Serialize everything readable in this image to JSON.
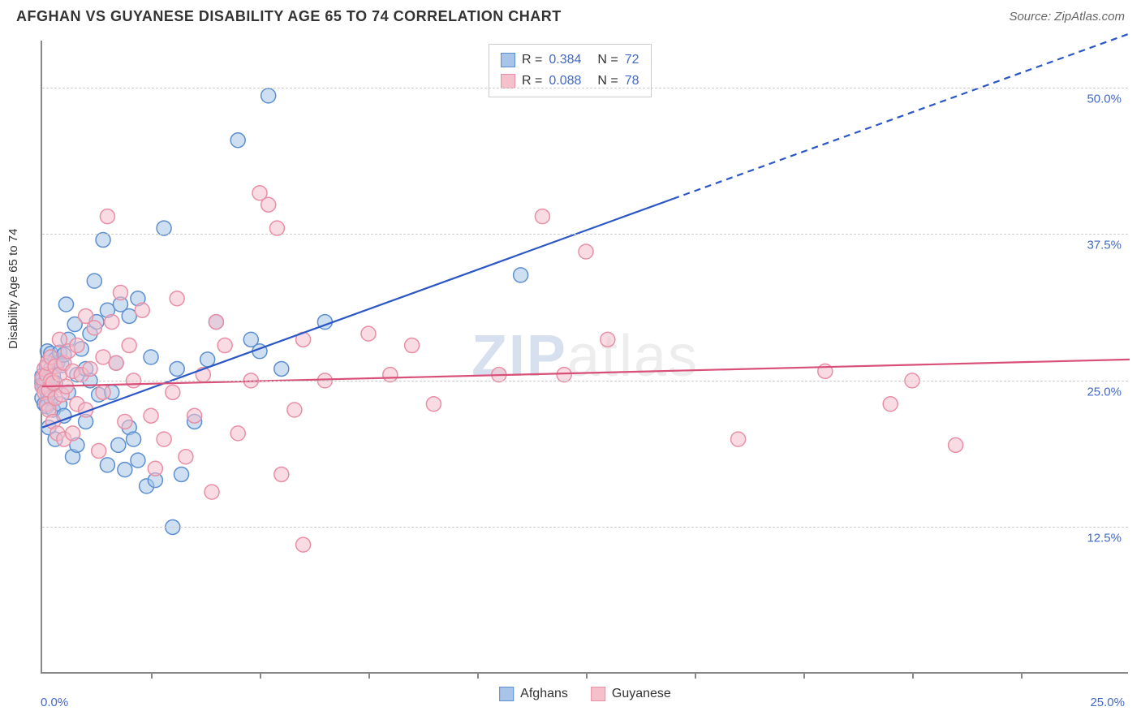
{
  "title": "AFGHAN VS GUYANESE DISABILITY AGE 65 TO 74 CORRELATION CHART",
  "source": "Source: ZipAtlas.com",
  "ylabel": "Disability Age 65 to 74",
  "watermark_bold": "ZIP",
  "watermark_rest": "atlas",
  "chart": {
    "type": "scatter",
    "xlim": [
      0,
      25
    ],
    "ylim": [
      0,
      54
    ],
    "x_axis_left_label": "0.0%",
    "x_axis_right_label": "25.0%",
    "y_ticks": [
      12.5,
      25.0,
      37.5,
      50.0
    ],
    "y_tick_labels": [
      "12.5%",
      "25.0%",
      "37.5%",
      "50.0%"
    ],
    "x_ticks": [
      2.5,
      5.0,
      7.5,
      10.0,
      12.5,
      15.0,
      17.5,
      20.0,
      22.5
    ],
    "background_color": "#ffffff",
    "grid_color": "#cccccc",
    "marker_radius": 9,
    "marker_opacity": 0.55,
    "series": [
      {
        "name": "Afghans",
        "color_fill": "#a8c4e8",
        "color_stroke": "#5b8fd0",
        "R": "0.384",
        "N": "72",
        "trend": {
          "x1": 0,
          "y1": 21.0,
          "x2": 14.5,
          "y2": 40.5,
          "x2_dash": 25,
          "y2_dash": 54.6,
          "color": "#2b56c6",
          "width": 2.2
        },
        "points": [
          [
            0.0,
            23.5
          ],
          [
            0.0,
            25.0
          ],
          [
            0.0,
            24.7
          ],
          [
            0.0,
            25.4
          ],
          [
            0.05,
            23.0
          ],
          [
            0.05,
            24.7
          ],
          [
            0.1,
            25.0
          ],
          [
            0.1,
            26.2
          ],
          [
            0.1,
            22.8
          ],
          [
            0.12,
            27.5
          ],
          [
            0.12,
            24.0
          ],
          [
            0.15,
            24.5
          ],
          [
            0.15,
            21.0
          ],
          [
            0.2,
            26.0
          ],
          [
            0.2,
            23.5
          ],
          [
            0.2,
            27.3
          ],
          [
            0.25,
            25.4
          ],
          [
            0.25,
            22.5
          ],
          [
            0.3,
            26.8
          ],
          [
            0.3,
            20.0
          ],
          [
            0.3,
            24.8
          ],
          [
            0.35,
            26.5
          ],
          [
            0.4,
            27.4
          ],
          [
            0.4,
            23.0
          ],
          [
            0.45,
            26.3
          ],
          [
            0.5,
            27.2
          ],
          [
            0.5,
            22.0
          ],
          [
            0.55,
            31.5
          ],
          [
            0.6,
            24.0
          ],
          [
            0.6,
            28.5
          ],
          [
            0.7,
            18.5
          ],
          [
            0.75,
            29.8
          ],
          [
            0.8,
            25.5
          ],
          [
            0.8,
            19.5
          ],
          [
            0.9,
            27.7
          ],
          [
            1.0,
            26.0
          ],
          [
            1.0,
            21.5
          ],
          [
            1.1,
            25.0
          ],
          [
            1.1,
            29.0
          ],
          [
            1.2,
            33.5
          ],
          [
            1.25,
            30.0
          ],
          [
            1.3,
            23.8
          ],
          [
            1.4,
            37.0
          ],
          [
            1.5,
            17.8
          ],
          [
            1.5,
            31.0
          ],
          [
            1.6,
            24.0
          ],
          [
            1.7,
            26.5
          ],
          [
            1.75,
            19.5
          ],
          [
            1.8,
            31.5
          ],
          [
            1.9,
            17.4
          ],
          [
            2.0,
            21.0
          ],
          [
            2.0,
            30.5
          ],
          [
            2.1,
            20.0
          ],
          [
            2.2,
            18.2
          ],
          [
            2.2,
            32.0
          ],
          [
            2.4,
            16.0
          ],
          [
            2.5,
            27.0
          ],
          [
            2.6,
            16.5
          ],
          [
            2.8,
            38.0
          ],
          [
            3.0,
            12.5
          ],
          [
            3.1,
            26.0
          ],
          [
            3.2,
            17.0
          ],
          [
            3.5,
            21.5
          ],
          [
            3.8,
            26.8
          ],
          [
            4.0,
            30.0
          ],
          [
            4.5,
            45.5
          ],
          [
            4.8,
            28.5
          ],
          [
            5.2,
            49.3
          ],
          [
            5.5,
            26.0
          ],
          [
            6.5,
            30.0
          ],
          [
            5.0,
            27.5
          ],
          [
            11.0,
            34.0
          ]
        ]
      },
      {
        "name": "Guyanese",
        "color_fill": "#f4c0cc",
        "color_stroke": "#e88fa5",
        "R": "0.088",
        "N": "78",
        "trend": {
          "x1": 0,
          "y1": 24.5,
          "x2": 25,
          "y2": 26.8,
          "color": "#d84f78",
          "width": 2.2
        },
        "points": [
          [
            0.0,
            24.5
          ],
          [
            0.0,
            25.2
          ],
          [
            0.05,
            24.0
          ],
          [
            0.05,
            26.0
          ],
          [
            0.1,
            23.0
          ],
          [
            0.1,
            25.5
          ],
          [
            0.12,
            26.5
          ],
          [
            0.15,
            24.2
          ],
          [
            0.15,
            22.5
          ],
          [
            0.2,
            25.0
          ],
          [
            0.2,
            27.0
          ],
          [
            0.25,
            24.8
          ],
          [
            0.25,
            21.5
          ],
          [
            0.3,
            23.5
          ],
          [
            0.3,
            26.2
          ],
          [
            0.35,
            20.5
          ],
          [
            0.4,
            25.5
          ],
          [
            0.4,
            28.5
          ],
          [
            0.45,
            23.8
          ],
          [
            0.5,
            26.5
          ],
          [
            0.5,
            20.0
          ],
          [
            0.55,
            24.5
          ],
          [
            0.6,
            27.5
          ],
          [
            0.7,
            20.5
          ],
          [
            0.7,
            25.8
          ],
          [
            0.8,
            23.0
          ],
          [
            0.8,
            28.0
          ],
          [
            0.9,
            25.5
          ],
          [
            1.0,
            30.5
          ],
          [
            1.0,
            22.5
          ],
          [
            1.1,
            26.0
          ],
          [
            1.2,
            29.5
          ],
          [
            1.3,
            19.0
          ],
          [
            1.4,
            24.0
          ],
          [
            1.4,
            27.0
          ],
          [
            1.5,
            39.0
          ],
          [
            1.6,
            30.0
          ],
          [
            1.7,
            26.5
          ],
          [
            1.8,
            32.5
          ],
          [
            1.9,
            21.5
          ],
          [
            2.0,
            28.0
          ],
          [
            2.1,
            25.0
          ],
          [
            2.3,
            31.0
          ],
          [
            2.5,
            22.0
          ],
          [
            2.6,
            17.5
          ],
          [
            2.8,
            20.0
          ],
          [
            3.0,
            24.0
          ],
          [
            3.1,
            32.0
          ],
          [
            3.3,
            18.5
          ],
          [
            3.5,
            22.0
          ],
          [
            3.7,
            25.5
          ],
          [
            3.9,
            15.5
          ],
          [
            4.0,
            30.0
          ],
          [
            4.2,
            28.0
          ],
          [
            4.5,
            20.5
          ],
          [
            4.8,
            25.0
          ],
          [
            5.0,
            41.0
          ],
          [
            5.2,
            40.0
          ],
          [
            5.4,
            38.0
          ],
          [
            5.5,
            17.0
          ],
          [
            5.8,
            22.5
          ],
          [
            6.0,
            28.5
          ],
          [
            6.0,
            11.0
          ],
          [
            6.5,
            25.0
          ],
          [
            7.5,
            29.0
          ],
          [
            8.0,
            25.5
          ],
          [
            8.5,
            28.0
          ],
          [
            9.0,
            23.0
          ],
          [
            10.5,
            25.5
          ],
          [
            11.5,
            39.0
          ],
          [
            12.0,
            25.5
          ],
          [
            12.5,
            36.0
          ],
          [
            13.0,
            28.5
          ],
          [
            16.0,
            20.0
          ],
          [
            18.0,
            25.8
          ],
          [
            19.5,
            23.0
          ],
          [
            20.0,
            25.0
          ],
          [
            21.0,
            19.5
          ]
        ]
      }
    ]
  },
  "legend_bottom": [
    {
      "label": "Afghans",
      "fill": "#a8c4e8",
      "stroke": "#5b8fd0"
    },
    {
      "label": "Guyanese",
      "fill": "#f4c0cc",
      "stroke": "#e88fa5"
    }
  ]
}
